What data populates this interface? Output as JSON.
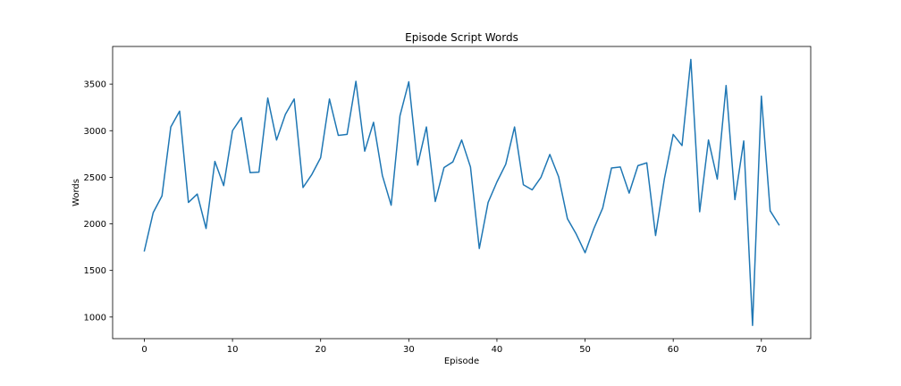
{
  "chart_data": {
    "type": "line",
    "title": "Episode Script Words",
    "xlabel": "Episode",
    "ylabel": "Words",
    "xlim": [
      -3.6,
      75.6
    ],
    "ylim": [
      768,
      3904
    ],
    "xticks": [
      0,
      10,
      20,
      30,
      40,
      50,
      60,
      70
    ],
    "yticks": [
      1000,
      1500,
      2000,
      2500,
      3000,
      3500
    ],
    "grid": false,
    "legend": "none",
    "series": [
      {
        "color": "#1f77b4",
        "x": [
          0,
          1,
          2,
          3,
          4,
          5,
          6,
          7,
          8,
          9,
          10,
          11,
          12,
          13,
          14,
          15,
          16,
          17,
          18,
          19,
          20,
          21,
          22,
          23,
          24,
          25,
          26,
          27,
          28,
          29,
          30,
          31,
          32,
          33,
          34,
          35,
          36,
          37,
          38,
          39,
          40,
          41,
          42,
          43,
          44,
          45,
          46,
          47,
          48,
          49,
          50,
          51,
          52,
          53,
          54,
          55,
          56,
          57,
          58,
          59,
          60,
          61,
          62,
          63,
          64,
          65,
          66,
          67,
          68,
          69,
          70,
          71,
          72
        ],
        "values": [
          1710,
          2120,
          2300,
          3040,
          3210,
          2230,
          2320,
          1950,
          2670,
          2410,
          3000,
          3140,
          2550,
          2555,
          3350,
          2900,
          3175,
          3340,
          2390,
          2530,
          2710,
          3340,
          2950,
          2960,
          3530,
          2780,
          3090,
          2520,
          2200,
          3160,
          3525,
          2630,
          3040,
          2240,
          2605,
          2665,
          2900,
          2610,
          1735,
          2230,
          2450,
          2640,
          3040,
          2420,
          2365,
          2500,
          2745,
          2505,
          2055,
          1890,
          1690,
          1950,
          2170,
          2600,
          2610,
          2330,
          2625,
          2655,
          1875,
          2485,
          2960,
          2840,
          3765,
          2130,
          2900,
          2480,
          3485,
          2260,
          2890,
          910,
          3370,
          2140,
          1990
        ]
      }
    ]
  }
}
